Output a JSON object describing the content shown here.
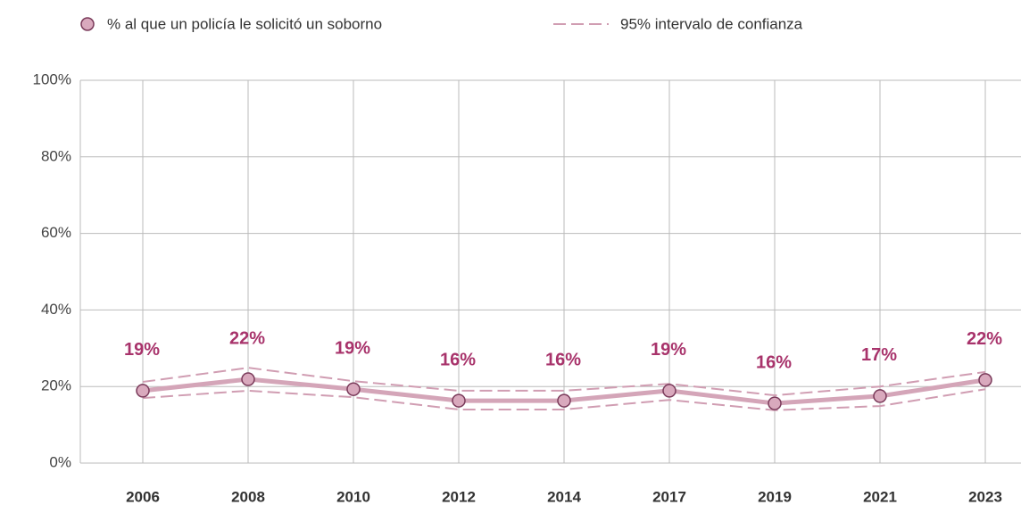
{
  "chart_data": {
    "type": "line",
    "categories": [
      "2006",
      "2008",
      "2010",
      "2012",
      "2014",
      "2017",
      "2019",
      "2021",
      "2023"
    ],
    "series": [
      {
        "name": "% al que un policía le solicitó un soborno",
        "color": "#d4a5b8",
        "label_color": "#a8336b",
        "values": [
          18.9,
          21.9,
          19.3,
          16.3,
          16.3,
          18.9,
          15.6,
          17.5,
          21.7
        ],
        "value_labels": [
          "19%",
          "22%",
          "19%",
          "16%",
          "16%",
          "19%",
          "16%",
          "17%",
          "22%"
        ]
      },
      {
        "name": "95% intervalo de confianza",
        "color": "#d09db2",
        "upper": [
          21.2,
          24.9,
          21.4,
          18.9,
          18.9,
          20.7,
          17.7,
          20,
          23.8
        ],
        "lower": [
          17,
          18.9,
          17.2,
          14,
          14,
          16.5,
          13.8,
          14.9,
          19.3
        ]
      }
    ],
    "ylim": [
      0,
      100
    ],
    "yticks": [
      {
        "value": 0,
        "label": "0%"
      },
      {
        "value": 20,
        "label": "20%"
      },
      {
        "value": 40,
        "label": "40%"
      },
      {
        "value": 60,
        "label": "60%"
      },
      {
        "value": 80,
        "label": "80%"
      },
      {
        "value": 100,
        "label": "100%"
      }
    ],
    "grid": true
  }
}
